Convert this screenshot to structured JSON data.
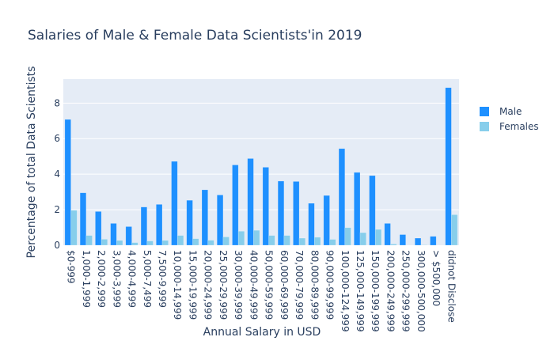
{
  "chart_data": {
    "type": "bar",
    "title": "Salaries of Male & Female Data Scientists'in 2019",
    "xlabel": "Annual Salary in USD",
    "ylabel": "Percentage of total Data Scientists",
    "ylim": [
      0,
      9.35
    ],
    "yticks": [
      0,
      2,
      4,
      6,
      8
    ],
    "grid": true,
    "legend_position": "top-right",
    "barmode": "group",
    "categories": [
      "$0-999",
      "1,000-1,999",
      "2,000-2,999",
      "3,000-3,999",
      "4,000-4,999",
      "5,000-7,499",
      "7,500-9,999",
      "10,000-14,999",
      "15,000-19,999",
      "20,000-24,999",
      "25,000-29,999",
      "30,000-39,999",
      "40,000-49,999",
      "50,000-59,999",
      "60,000-69,999",
      "70,000-79,999",
      "80,000-89,999",
      "90,000-99,999",
      "100,000-124,999",
      "125,000-149,999",
      "150,000-199,999",
      "200,000-249,999",
      "250,000-299,999",
      "300,000-500,000",
      "> $500,000",
      "didnot Disclose"
    ],
    "series": [
      {
        "name": "Male",
        "color": "#1e90ff",
        "values": [
          7.08,
          2.95,
          1.9,
          1.23,
          1.05,
          2.15,
          2.3,
          4.72,
          2.53,
          3.12,
          2.83,
          4.52,
          4.88,
          4.39,
          3.61,
          3.59,
          2.36,
          2.8,
          5.44,
          4.1,
          3.92,
          1.23,
          0.6,
          0.4,
          0.5,
          8.87
        ]
      },
      {
        "name": "Females",
        "color": "#87ceeb",
        "values": [
          1.97,
          0.55,
          0.34,
          0.27,
          0.15,
          0.24,
          0.27,
          0.55,
          0.37,
          0.28,
          0.47,
          0.79,
          0.84,
          0.55,
          0.55,
          0.4,
          0.45,
          0.33,
          0.99,
          0.71,
          0.89,
          0.07,
          0.0,
          0.02,
          0.0,
          1.72
        ]
      }
    ]
  },
  "colors": {
    "plot_background": "#e5ecf6",
    "gridline": "#ffffff",
    "text": "#2a3f5f"
  }
}
